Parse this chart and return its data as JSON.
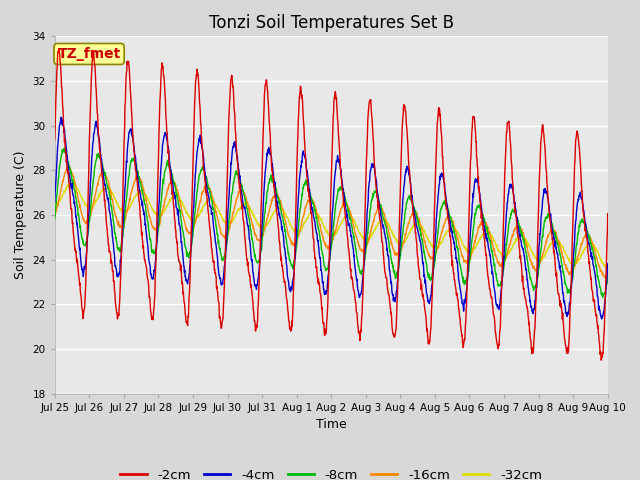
{
  "title": "Tonzi Soil Temperatures Set B",
  "xlabel": "Time",
  "ylabel": "Soil Temperature (C)",
  "ylim": [
    18,
    34
  ],
  "yticks": [
    18,
    20,
    22,
    24,
    26,
    28,
    30,
    32,
    34
  ],
  "annotation_text": "TZ_fmet",
  "annotation_color": "#cc0000",
  "annotation_bg": "#ffff99",
  "annotation_border": "#888800",
  "colors": {
    "-2cm": "#dd0000",
    "-4cm": "#0000cc",
    "-8cm": "#00bb00",
    "-16cm": "#ff8800",
    "-32cm": "#dddd00"
  },
  "legend_labels": [
    "-2cm",
    "-4cm",
    "-8cm",
    "-16cm",
    "-32cm"
  ],
  "bg_color": "#e8e8e8",
  "grid_color": "#ffffff",
  "fig_bg": "#d8d8d8",
  "n_days": 16,
  "points_per_day": 96
}
